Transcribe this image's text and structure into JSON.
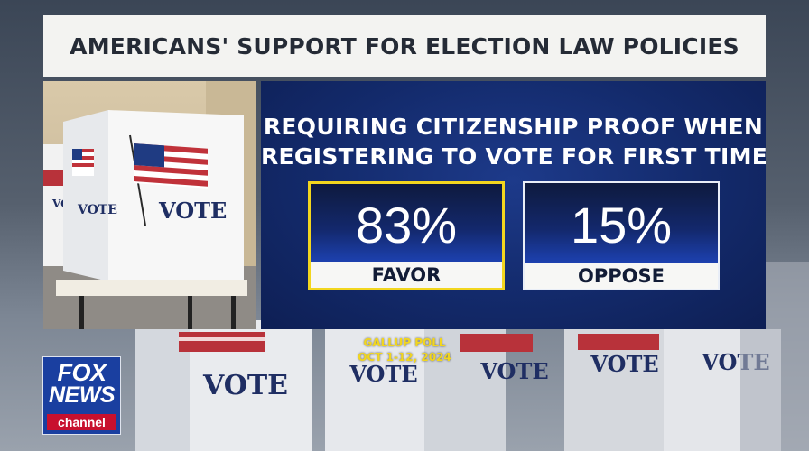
{
  "title": "AMERICANS' SUPPORT FOR ELECTION LAW POLICIES",
  "question": {
    "line1": "REQUIRING CITIZENSHIP PROOF WHEN",
    "line2": "REGISTERING TO VOTE FOR FIRST TIME"
  },
  "stats": {
    "favor": {
      "value": "83%",
      "label": "FAVOR"
    },
    "oppose": {
      "value": "15%",
      "label": "OPPOSE"
    }
  },
  "source": {
    "line1": "GALLUP POLL",
    "line2": "OCT 1-12, 2024"
  },
  "photo": {
    "booth_text": "VOTE",
    "booth_text_small": "VOTE"
  },
  "background": {
    "booth_labels": [
      "VOTE",
      "VOTE",
      "VOTE",
      "VOTE",
      "VOTE"
    ]
  },
  "logo": {
    "fox": "FOX",
    "news": "NEWS",
    "channel": "channel"
  },
  "colors": {
    "panel_blue": "#132a6b",
    "favor_border": "#f2d61e",
    "source_text": "#f2d61e",
    "logo_red": "#c8102e"
  }
}
